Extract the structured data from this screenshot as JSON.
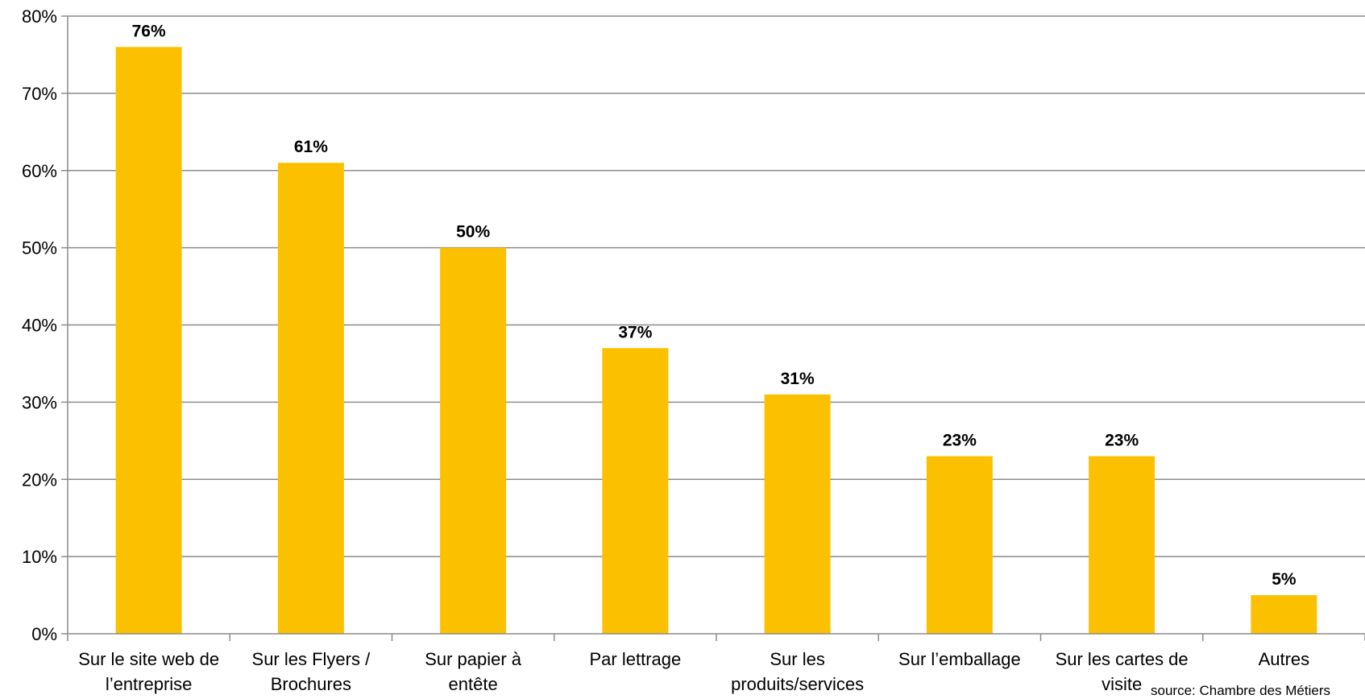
{
  "chart_data": {
    "type": "bar",
    "categories": [
      [
        "Sur le site web de",
        "l’entreprise"
      ],
      [
        "Sur les Flyers /",
        "Brochures"
      ],
      [
        "Sur papier à",
        "entête"
      ],
      [
        "Par lettrage"
      ],
      [
        "Sur les",
        "produits/services"
      ],
      [
        "Sur l’emballage"
      ],
      [
        "Sur les cartes de",
        "visite"
      ],
      [
        "Autres"
      ]
    ],
    "values": [
      76,
      61,
      50,
      37,
      31,
      23,
      23,
      5
    ],
    "data_labels": [
      "76%",
      "61%",
      "50%",
      "37%",
      "31%",
      "23%",
      "23%",
      "5%"
    ],
    "ylim": [
      0,
      80
    ],
    "yticks": [
      0,
      10,
      20,
      30,
      40,
      50,
      60,
      70,
      80
    ],
    "ytick_labels": [
      "0%",
      "10%",
      "20%",
      "30%",
      "40%",
      "50%",
      "60%",
      "70%",
      "80%"
    ],
    "grid": true,
    "bar_color": "#FBC100",
    "title": "",
    "xlabel": "",
    "ylabel": ""
  },
  "source": "source: Chambre des Métiers"
}
